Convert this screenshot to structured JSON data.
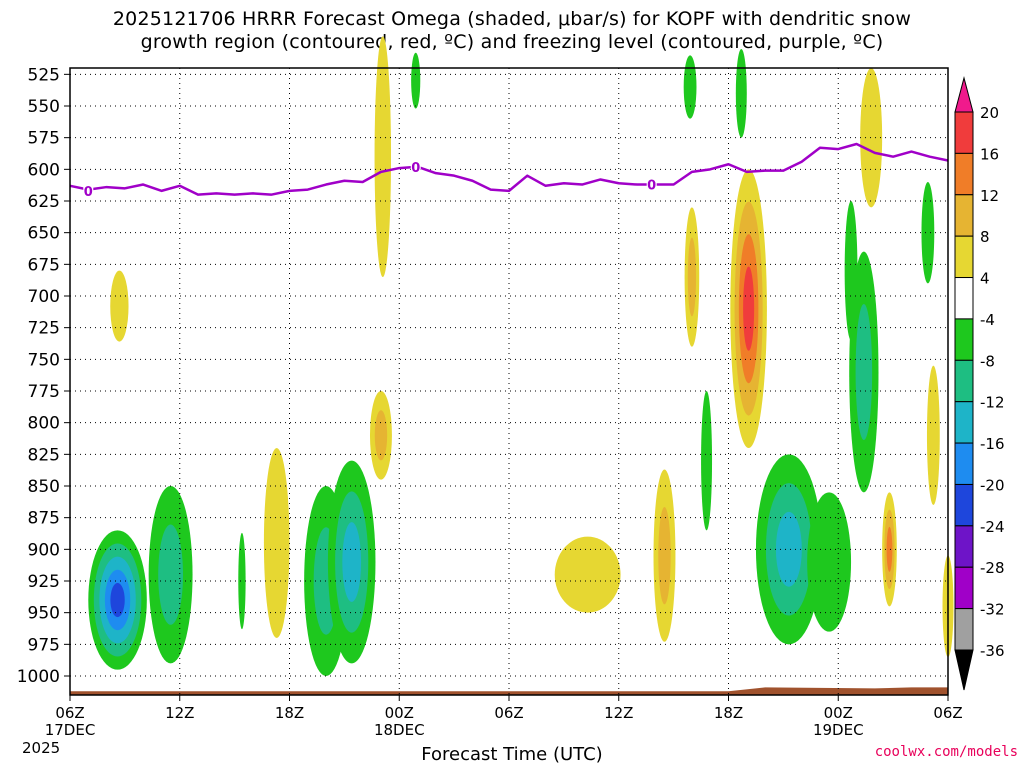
{
  "title_line1": "2025121706 HRRR Forecast Omega (shaded, μbar/s) for KOPF with dendritic snow",
  "title_line2": "growth region (contoured, red, ºC) and freezing level (contoured, purple, ºC)",
  "credit": "coolwx.com/models",
  "chart_data": {
    "type": "heatmap",
    "title": "2025121706 HRRR Forecast Omega (shaded, μbar/s) for KOPF with dendritic snow growth region (contoured, red, ºC) and freezing level (contoured, purple, ºC)",
    "xlabel": "Forecast Time (UTC)",
    "ylabel": "",
    "x_range_hours": [
      0,
      48
    ],
    "y_range_mb": [
      1015,
      520
    ],
    "y_ticks": [
      525,
      550,
      575,
      600,
      625,
      650,
      675,
      700,
      725,
      750,
      775,
      800,
      825,
      850,
      875,
      900,
      925,
      950,
      975,
      1000
    ],
    "x_ticks": [
      {
        "h": 0,
        "label": "06Z",
        "sub": "17DEC"
      },
      {
        "h": 6,
        "label": "12Z",
        "sub": ""
      },
      {
        "h": 12,
        "label": "18Z",
        "sub": ""
      },
      {
        "h": 18,
        "label": "00Z",
        "sub": "18DEC"
      },
      {
        "h": 24,
        "label": "06Z",
        "sub": ""
      },
      {
        "h": 30,
        "label": "12Z",
        "sub": ""
      },
      {
        "h": 36,
        "label": "18Z",
        "sub": ""
      },
      {
        "h": 42,
        "label": "00Z",
        "sub": "19DEC"
      },
      {
        "h": 48,
        "label": "06Z",
        "sub": ""
      }
    ],
    "year_label": "2025",
    "grid": true,
    "colorbar": {
      "labels": [
        "20",
        "16",
        "12",
        "8",
        "4",
        "-4",
        "-8",
        "-12",
        "-16",
        "-20",
        "-24",
        "-28",
        "-32",
        "-36"
      ],
      "colors": [
        "#f01a8c",
        "#f03c3c",
        "#f07d28",
        "#e6b432",
        "#e6d732",
        "#ffffff",
        "#1ec81e",
        "#1ebe82",
        "#1eb4c8",
        "#1e8cf0",
        "#1e46dc",
        "#6e14c8",
        "#a000c8",
        "#a0a0a0",
        "#000000"
      ]
    },
    "omega_features": [
      {
        "h": 2.6,
        "p": 940,
        "rh": 1.6,
        "rp": 55,
        "levels": [
          "#1ec81e",
          "#1ebe82",
          "#1eb4c8",
          "#1e8cf0",
          "#1e46dc"
        ]
      },
      {
        "h": 5.5,
        "p": 920,
        "rh": 1.2,
        "rp": 70,
        "levels": [
          "#1ec81e",
          "#1ebe82"
        ]
      },
      {
        "h": 2.7,
        "p": 708,
        "rh": 0.5,
        "rp": 28,
        "levels": [
          "#e6d732"
        ]
      },
      {
        "h": 9.4,
        "p": 925,
        "rh": 0.2,
        "rp": 38,
        "levels": [
          "#1ec81e"
        ]
      },
      {
        "h": 11.3,
        "p": 895,
        "rh": 0.7,
        "rp": 75,
        "levels": [
          "#e6d732"
        ]
      },
      {
        "h": 14.0,
        "p": 925,
        "rh": 1.2,
        "rp": 75,
        "levels": [
          "#1ec81e",
          "#1ebe82"
        ]
      },
      {
        "h": 15.4,
        "p": 910,
        "rh": 1.3,
        "rp": 80,
        "levels": [
          "#1ec81e",
          "#1ebe82",
          "#1eb4c8"
        ]
      },
      {
        "h": 17.0,
        "p": 810,
        "rh": 0.6,
        "rp": 35,
        "levels": [
          "#e6d732",
          "#e6b432"
        ]
      },
      {
        "h": 17.1,
        "p": 590,
        "rh": 0.45,
        "rp": 95,
        "levels": [
          "#e6d732"
        ]
      },
      {
        "h": 18.9,
        "p": 530,
        "rh": 0.25,
        "rp": 22,
        "levels": [
          "#1ec81e"
        ]
      },
      {
        "h": 28.3,
        "p": 920,
        "rh": 1.8,
        "rp": 30,
        "levels": [
          "#e6d732"
        ]
      },
      {
        "h": 32.5,
        "p": 905,
        "rh": 0.6,
        "rp": 68,
        "levels": [
          "#e6d732",
          "#e6b432"
        ]
      },
      {
        "h": 34.0,
        "p": 685,
        "rh": 0.4,
        "rp": 55,
        "levels": [
          "#e6d732",
          "#e6b432"
        ]
      },
      {
        "h": 33.9,
        "p": 535,
        "rh": 0.35,
        "rp": 25,
        "levels": [
          "#1ec81e"
        ]
      },
      {
        "h": 34.8,
        "p": 830,
        "rh": 0.3,
        "rp": 55,
        "levels": [
          "#1ec81e"
        ]
      },
      {
        "h": 37.1,
        "p": 710,
        "rh": 1.0,
        "rp": 110,
        "levels": [
          "#e6d732",
          "#e6b432",
          "#f07d28",
          "#f03c3c"
        ]
      },
      {
        "h": 36.7,
        "p": 540,
        "rh": 0.3,
        "rp": 35,
        "levels": [
          "#1ec81e"
        ]
      },
      {
        "h": 39.3,
        "p": 900,
        "rh": 1.8,
        "rp": 75,
        "levels": [
          "#1ec81e",
          "#1ebe82",
          "#1eb4c8"
        ]
      },
      {
        "h": 41.5,
        "p": 910,
        "rh": 1.2,
        "rp": 55,
        "levels": [
          "#1ec81e"
        ]
      },
      {
        "h": 43.4,
        "p": 760,
        "rh": 0.8,
        "rp": 95,
        "levels": [
          "#1ec81e",
          "#1ebe82"
        ]
      },
      {
        "h": 42.7,
        "p": 680,
        "rh": 0.35,
        "rp": 55,
        "levels": [
          "#1ec81e"
        ]
      },
      {
        "h": 43.8,
        "p": 575,
        "rh": 0.6,
        "rp": 55,
        "levels": [
          "#e6d732"
        ]
      },
      {
        "h": 44.8,
        "p": 900,
        "rh": 0.4,
        "rp": 45,
        "levels": [
          "#e6d732",
          "#e6b432",
          "#f07d28"
        ]
      },
      {
        "h": 46.9,
        "p": 650,
        "rh": 0.35,
        "rp": 40,
        "levels": [
          "#1ec81e"
        ]
      },
      {
        "h": 47.2,
        "p": 810,
        "rh": 0.35,
        "rp": 55,
        "levels": [
          "#e6d732"
        ]
      },
      {
        "h": 48.0,
        "p": 945,
        "rh": 0.3,
        "rp": 40,
        "levels": [
          "#e6d732"
        ]
      }
    ],
    "freezing_level": {
      "label": "0",
      "color": "#a000c8",
      "points": [
        [
          0,
          613
        ],
        [
          1,
          616
        ],
        [
          2,
          614
        ],
        [
          3,
          615
        ],
        [
          4,
          612
        ],
        [
          5,
          617
        ],
        [
          6,
          613
        ],
        [
          7,
          620
        ],
        [
          8,
          619
        ],
        [
          9,
          620
        ],
        [
          10,
          619
        ],
        [
          11,
          620
        ],
        [
          12,
          617
        ],
        [
          13,
          616
        ],
        [
          14,
          612
        ],
        [
          15,
          609
        ],
        [
          16,
          610
        ],
        [
          17,
          602
        ],
        [
          18,
          599
        ],
        [
          19,
          598
        ],
        [
          20,
          603
        ],
        [
          21,
          605
        ],
        [
          22,
          609
        ],
        [
          23,
          616
        ],
        [
          24,
          617
        ],
        [
          25,
          605
        ],
        [
          26,
          613
        ],
        [
          27,
          611
        ],
        [
          28,
          612
        ],
        [
          29,
          608
        ],
        [
          30,
          611
        ],
        [
          31,
          612
        ],
        [
          32,
          612
        ],
        [
          33,
          612
        ],
        [
          34,
          602
        ],
        [
          35,
          600
        ],
        [
          36,
          596
        ],
        [
          37,
          602
        ],
        [
          38,
          601
        ],
        [
          39,
          601
        ],
        [
          40,
          594
        ],
        [
          41,
          583
        ],
        [
          42,
          584
        ],
        [
          43,
          580
        ],
        [
          44,
          587
        ],
        [
          45,
          590
        ],
        [
          46,
          586
        ],
        [
          47,
          590
        ],
        [
          48,
          593
        ]
      ],
      "label_positions": [
        [
          1.0,
          617
        ],
        [
          18.9,
          598
        ],
        [
          31.8,
          612
        ]
      ]
    },
    "terrain": {
      "color": "#a0522d",
      "p_top": 1012,
      "p_top_right": 1009
    }
  }
}
